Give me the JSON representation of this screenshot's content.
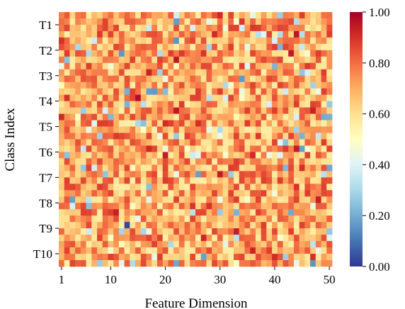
{
  "chart_data": {
    "type": "heatmap",
    "title": "",
    "xlabel": "Feature Dimension",
    "ylabel": "Class Index",
    "n_columns": 50,
    "n_rows": 40,
    "x_ticks": [
      1,
      10,
      20,
      30,
      40,
      50
    ],
    "y_tick_labels": [
      "T1",
      "T2",
      "T3",
      "T4",
      "T5",
      "T6",
      "T7",
      "T8",
      "T9",
      "T10"
    ],
    "rows_per_class": 4,
    "colorbar": {
      "colormap": "RdYlBu_r",
      "range": [
        0.0,
        1.0
      ],
      "tick_labels": [
        "0.00",
        "0.20",
        "0.40",
        "0.60",
        "0.80",
        "1.00"
      ]
    },
    "value_distribution": "mostly 0.55-0.90 (yellow-orange-red), sparse low values 0.15-0.45 (light blue), rare extremes near 0.0 and 1.0",
    "notable_cells": [
      {
        "class": "T4",
        "feature": 15,
        "value": 0.97
      },
      {
        "class": "T3",
        "feature": 17,
        "value": 0.93
      },
      {
        "class": "T9",
        "feature": 13,
        "value": 0.03
      },
      {
        "class": "T2",
        "feature": 4,
        "value": 0.3
      },
      {
        "class": "T6",
        "feature": 5,
        "value": 0.35
      },
      {
        "class": "T7",
        "feature": 49,
        "value": 0.33
      }
    ]
  }
}
